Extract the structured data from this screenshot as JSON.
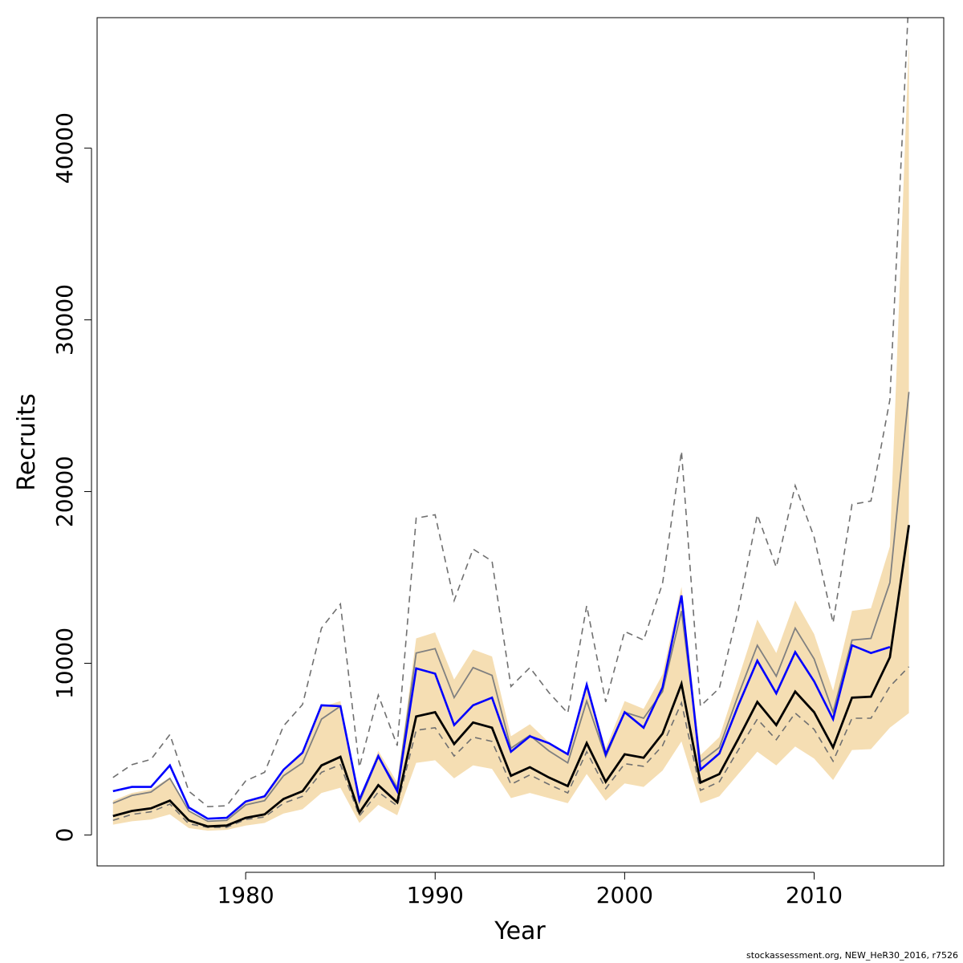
{
  "chart_data": {
    "type": "line",
    "xlabel": "Year",
    "ylabel": "Recruits",
    "xlim": [
      1972.2,
      1976.0
    ],
    "ylim": [
      -1800,
      47600
    ],
    "x_ticks": [
      1980,
      1990,
      2000,
      2010
    ],
    "y_ticks": [
      0,
      10000,
      20000,
      30000,
      40000
    ],
    "x_tick_labels": [
      "1980",
      "1990",
      "2000",
      "2010"
    ],
    "y_tick_labels": [
      "0",
      "10000",
      "20000",
      "30000",
      "40000"
    ],
    "grid": false,
    "legend": "none",
    "colors": {
      "band": "#f5deb3",
      "upper_dashed": "#707070",
      "lower_dashed": "#707070",
      "grey_line": "#808080",
      "blue_line": "#0000ff",
      "black_line": "#000000"
    },
    "x": [
      1973,
      1974,
      1975,
      1976,
      1977,
      1978,
      1979,
      1980,
      1981,
      1982,
      1983,
      1984,
      1985,
      1986,
      1987,
      1988,
      1989,
      1990,
      1991,
      1992,
      1993,
      1994,
      1995,
      1996,
      1997,
      1998,
      1999,
      2000,
      2001,
      2002,
      2003,
      2004,
      2005,
      2006,
      2007,
      2008,
      2009,
      2010,
      2011,
      2012,
      2013,
      2014,
      2015
    ],
    "band_lower": [
      600,
      800,
      900,
      1200,
      400,
      250,
      300,
      550,
      700,
      1250,
      1500,
      2450,
      2750,
      700,
      1750,
      1150,
      4200,
      4350,
      3300,
      4050,
      3850,
      2150,
      2450,
      2150,
      1850,
      3550,
      2000,
      3000,
      2800,
      3750,
      5450,
      1850,
      2250,
      3550,
      4850,
      4050,
      5150,
      4450,
      3200,
      4950,
      5000,
      6250,
      7100
    ],
    "band_upper": [
      2000,
      2450,
      2650,
      3350,
      1450,
      800,
      900,
      2000,
      2200,
      3650,
      4850,
      7450,
      7800,
      2050,
      4900,
      3050,
      11450,
      11800,
      9050,
      10800,
      10400,
      5750,
      6450,
      5400,
      4750,
      8750,
      5050,
      7800,
      7350,
      9350,
      14450,
      4650,
      5700,
      9100,
      12550,
      10600,
      13650,
      11700,
      8400,
      13050,
      13200,
      16800,
      46200
    ],
    "series": [
      {
        "key": "upper_dashed",
        "values": [
          3350,
          4100,
          4400,
          5850,
          2550,
          1650,
          1700,
          3150,
          3650,
          6350,
          7600,
          12050,
          13450,
          3950,
          8150,
          5200,
          18450,
          18650,
          13650,
          16650,
          15950,
          8650,
          9750,
          8300,
          7100,
          13350,
          7750,
          11850,
          11350,
          14650,
          22350,
          7500,
          8550,
          13100,
          18650,
          15600,
          20350,
          17350,
          12350,
          19250,
          19450,
          25350,
          48900
        ]
      },
      {
        "key": "grey_line",
        "values": [
          1850,
          2300,
          2500,
          3300,
          1400,
          800,
          850,
          1750,
          2000,
          3450,
          4200,
          6750,
          7500,
          1900,
          4550,
          2750,
          10600,
          10850,
          8000,
          9750,
          9300,
          5050,
          5800,
          4900,
          4200,
          7800,
          4550,
          7150,
          6800,
          8350,
          13050,
          4250,
          5100,
          8150,
          11050,
          9250,
          12050,
          10250,
          7150,
          11350,
          11450,
          14700,
          25800
        ]
      },
      {
        "key": "blue_line",
        "values": [
          2550,
          2800,
          2800,
          4050,
          1600,
          950,
          1000,
          1950,
          2250,
          3800,
          4800,
          7550,
          7500,
          2050,
          4600,
          2550,
          9700,
          9400,
          6400,
          7550,
          8000,
          4850,
          5750,
          5350,
          4700,
          8750,
          4700,
          7150,
          6250,
          8600,
          13950,
          3800,
          4750,
          7550,
          10150,
          8250,
          10650,
          8950,
          6750,
          11050,
          10600,
          10950,
          null
        ]
      },
      {
        "key": "black_line",
        "values": [
          1100,
          1400,
          1550,
          2000,
          850,
          500,
          550,
          1000,
          1200,
          2100,
          2550,
          4050,
          4550,
          1300,
          2900,
          1900,
          6900,
          7150,
          5300,
          6550,
          6250,
          3450,
          3950,
          3350,
          2850,
          5350,
          3100,
          4700,
          4500,
          5900,
          8800,
          3050,
          3550,
          5600,
          7750,
          6400,
          8350,
          7150,
          5100,
          8000,
          8050,
          10350,
          18050
        ]
      },
      {
        "key": "lower_dashed",
        "values": [
          850,
          1200,
          1350,
          1800,
          650,
          450,
          450,
          900,
          1050,
          1850,
          2250,
          3650,
          4100,
          1100,
          2500,
          1700,
          6100,
          6250,
          4600,
          5700,
          5450,
          2950,
          3500,
          2950,
          2450,
          4850,
          2700,
          4150,
          4000,
          5200,
          7700,
          2600,
          3100,
          4950,
          6750,
          5550,
          7100,
          6150,
          4300,
          6800,
          6800,
          8650,
          9800
        ]
      }
    ],
    "footer_note": "stockassessment.org, NEW_HeR30_2016, r7526"
  }
}
